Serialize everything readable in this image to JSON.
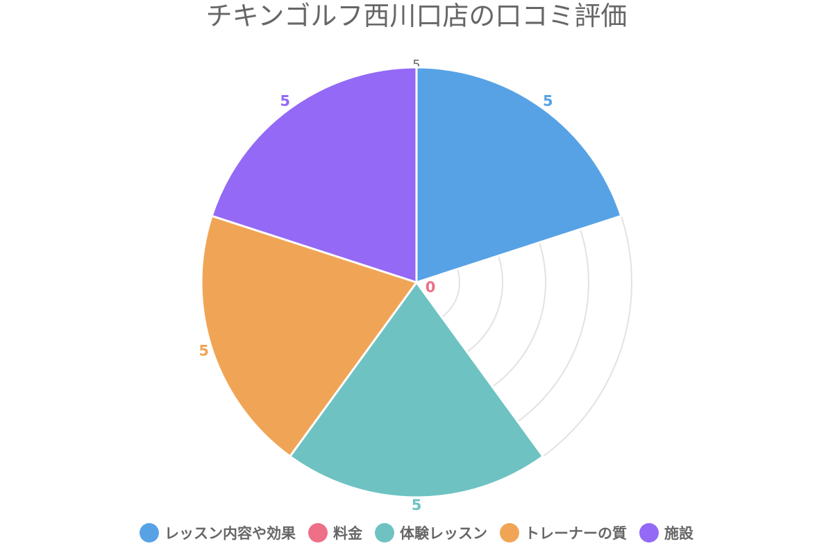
{
  "chart_data": {
    "type": "polarArea",
    "title": "チキンゴルフ西川口店の口コミ評価",
    "categories": [
      "レッスン内容や効果",
      "料金",
      "体験レッスン",
      "トレーナーの質",
      "施設"
    ],
    "values": [
      5,
      0,
      5,
      5,
      5
    ],
    "colors": [
      "#57a2e5",
      "#ee6f87",
      "#6ec2c2",
      "#f0a556",
      "#9469f5"
    ],
    "rmin": 0,
    "rmax": 5,
    "ticks": [
      1,
      2,
      3,
      4,
      5
    ],
    "tick_labels_visible": [
      "5"
    ],
    "legend_position": "bottom",
    "grid": true
  }
}
